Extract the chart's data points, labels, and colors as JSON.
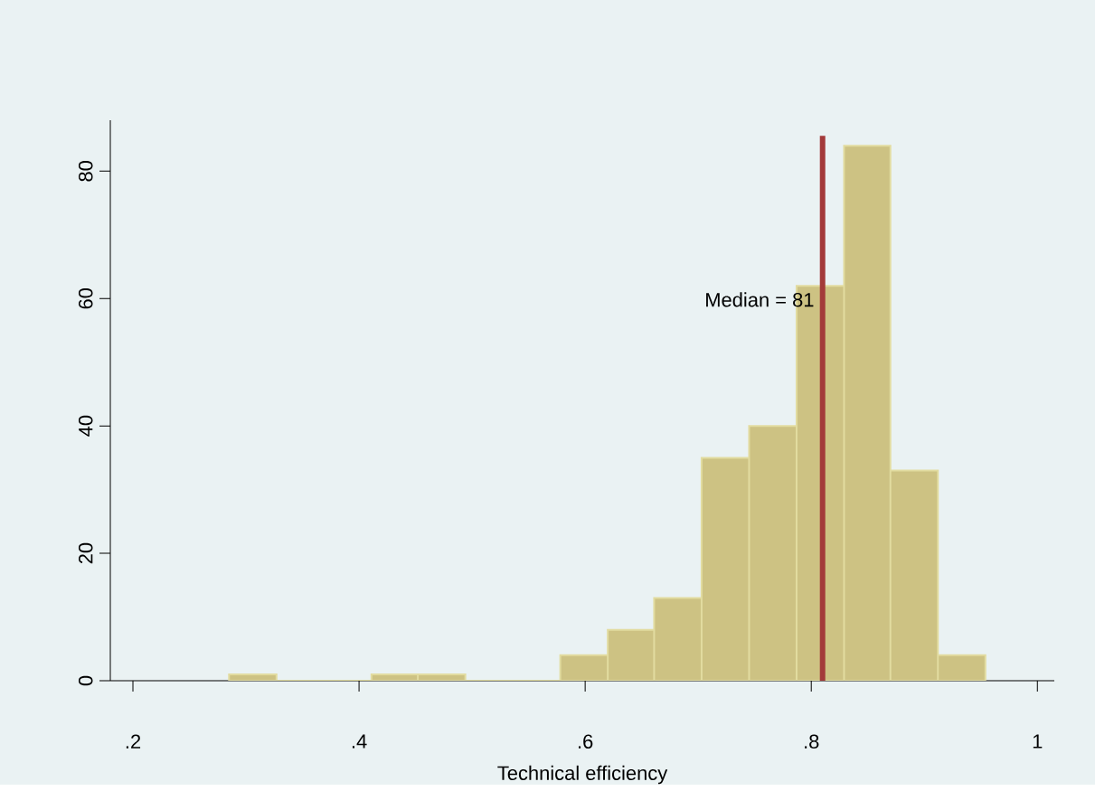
{
  "chart_data": {
    "type": "histogram",
    "xlabel": "Technical efficiency",
    "bins": [
      0.285,
      0.327,
      0.411,
      0.452,
      0.494,
      0.578,
      0.62,
      0.661,
      0.703,
      0.745,
      0.787,
      0.829,
      0.87,
      0.912,
      0.954
    ],
    "values": [
      1,
      0,
      1,
      1,
      0,
      4,
      8,
      13,
      35,
      40,
      62,
      84,
      33,
      4
    ],
    "color": "#cdc283",
    "xlim": [
      0.18,
      1.015
    ],
    "ylim": [
      0,
      88
    ],
    "xticks": [
      {
        "value": 0.2,
        "label": ".2"
      },
      {
        "value": 0.4,
        "label": ".4"
      },
      {
        "value": 0.6,
        "label": ".6"
      },
      {
        "value": 0.8,
        "label": ".8"
      },
      1
    ],
    "yticks": [
      0,
      20,
      40,
      60,
      80
    ],
    "ref_lines": [
      {
        "axis": "x",
        "value": 0.81,
        "label": "Median = 81",
        "color": "#a33a3a"
      }
    ],
    "grid": false
  }
}
